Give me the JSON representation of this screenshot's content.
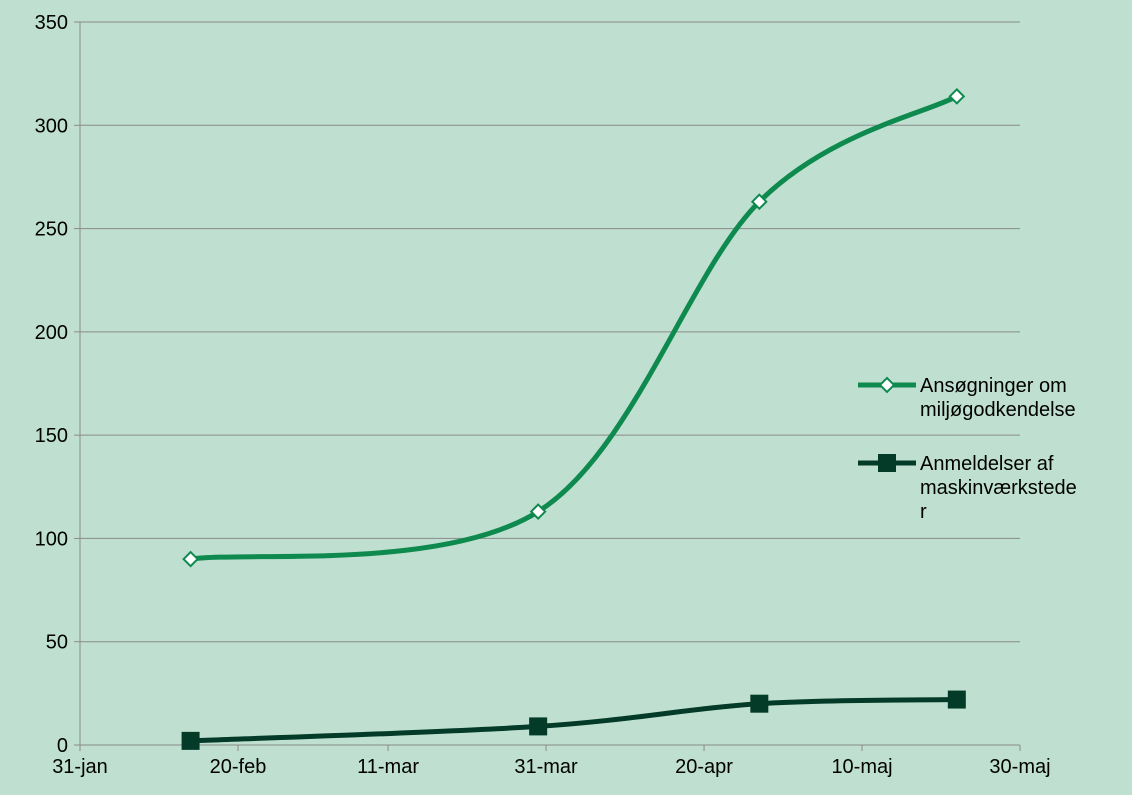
{
  "chart_data": {
    "type": "line",
    "title": "",
    "xlabel": "",
    "ylabel": "",
    "ylim": [
      0,
      350
    ],
    "yticks": [
      0,
      50,
      100,
      150,
      200,
      250,
      300,
      350
    ],
    "x_tick_labels": [
      "31-jan",
      "20-feb",
      "11-mar",
      "31-mar",
      "20-apr",
      "10-maj",
      "30-maj"
    ],
    "x_tick_dates": [
      "2011-01-31",
      "2011-02-20",
      "2011-03-11",
      "2011-03-31",
      "2011-04-20",
      "2011-05-10",
      "2011-05-30"
    ],
    "grid": "horizontal",
    "legend_position": "right",
    "series": [
      {
        "name": "Ansøgninger om miljøgodkendelse",
        "color": "#0f8a4f",
        "marker": "diamond-open",
        "x": [
          "2011-02-14",
          "2011-03-30",
          "2011-04-27",
          "2011-05-22"
        ],
        "y": [
          90,
          113,
          263,
          314
        ]
      },
      {
        "name": "Anmeldelser af maskinværkstede\nr",
        "color": "#043a28",
        "marker": "square",
        "x": [
          "2011-02-14",
          "2011-03-30",
          "2011-04-27",
          "2011-05-22"
        ],
        "y": [
          2,
          9,
          20,
          22
        ]
      }
    ]
  }
}
